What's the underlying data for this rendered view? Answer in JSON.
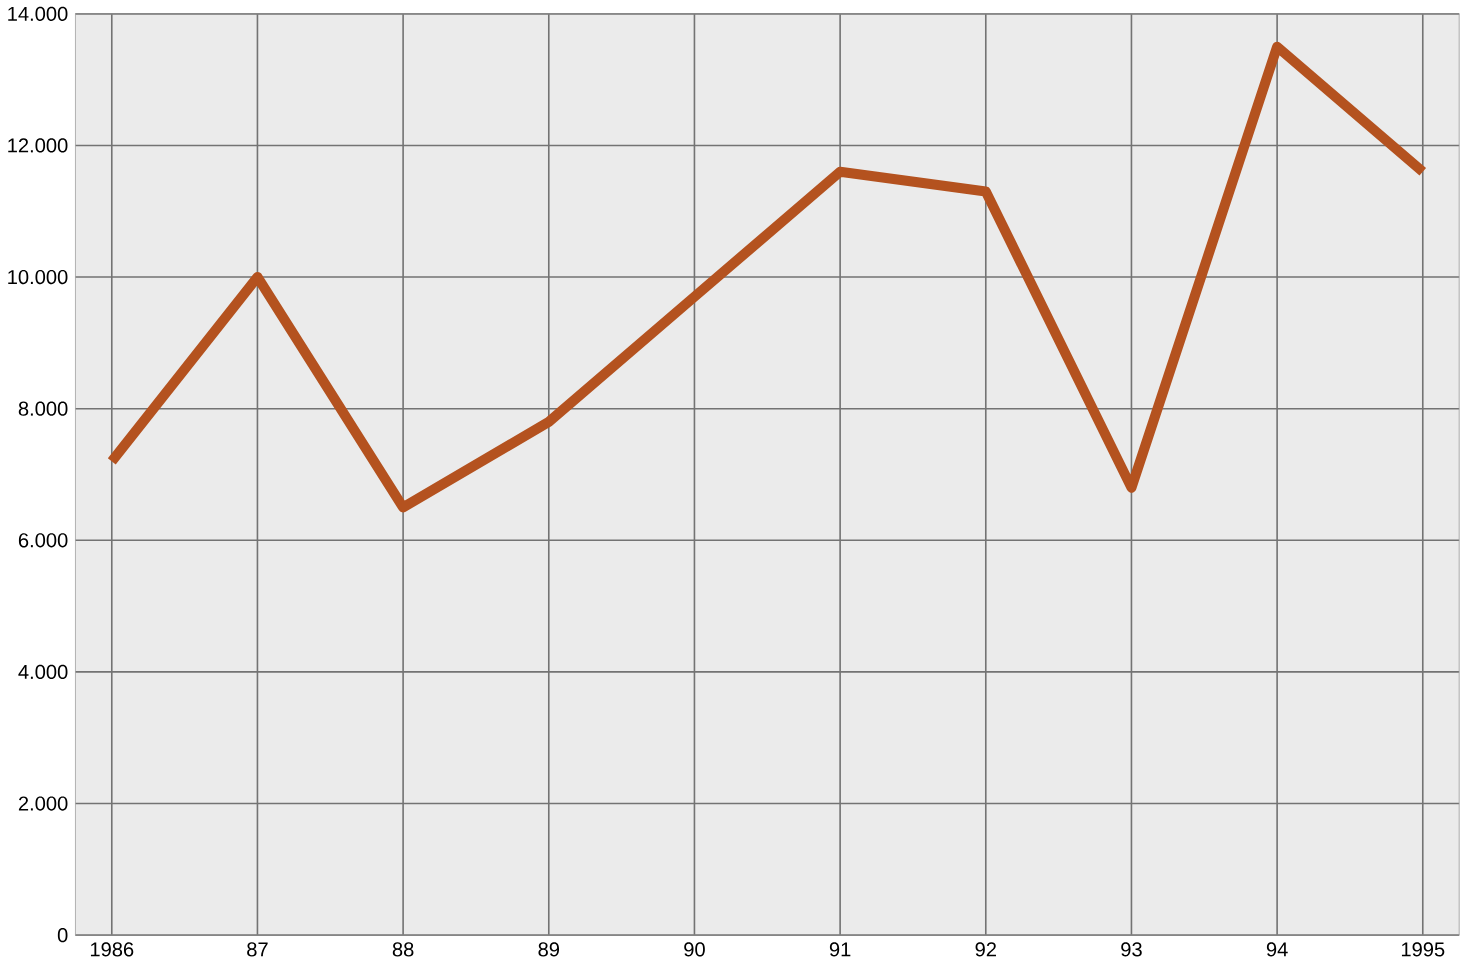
{
  "chart_data": {
    "type": "line",
    "categories": [
      "1986",
      "87",
      "88",
      "89",
      "90",
      "91",
      "92",
      "93",
      "94",
      "1995"
    ],
    "series": [
      {
        "color": "#b4521f",
        "values": [
          7200,
          10000,
          6500,
          7800,
          9700,
          11600,
          11300,
          6800,
          13500,
          11600
        ]
      }
    ],
    "ylim": [
      0,
      14000
    ],
    "yticks": [
      0,
      {
        "value": 2000,
        "label": "2.000"
      },
      {
        "value": 4000,
        "label": "4.000"
      },
      {
        "value": 6000,
        "label": "6.000"
      },
      {
        "value": 8000,
        "label": "8.000"
      },
      {
        "value": 10000,
        "label": "10.000"
      },
      {
        "value": 12000,
        "label": "12.000"
      },
      {
        "value": 14000,
        "label": "14.000"
      }
    ],
    "grid": true,
    "line_style": "solid",
    "marker": "none"
  }
}
